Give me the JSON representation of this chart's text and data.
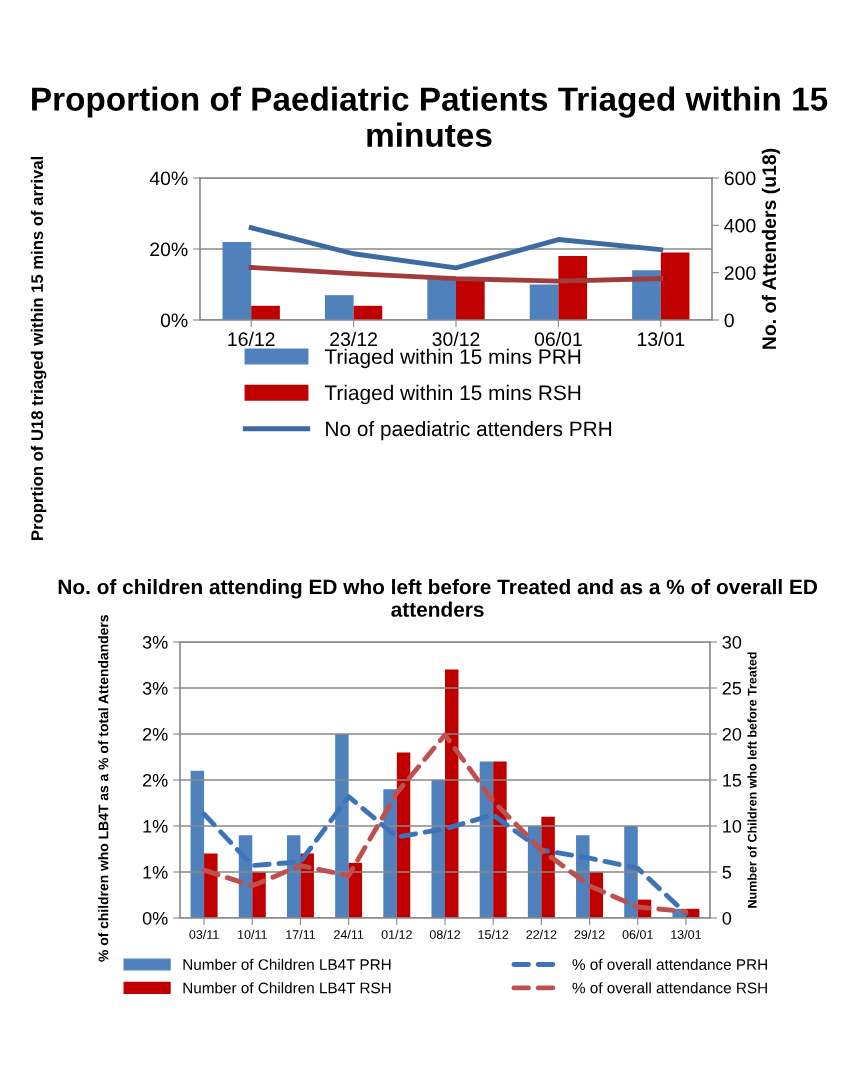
{
  "chart_data": [
    {
      "type": "bar",
      "title": "Proportion of Paediatric Patients Triaged within 15 minutes",
      "ylabel": "Proprtion of U18 triaged within 15 mins of arrival",
      "y2label": "No. of Attenders (u18)",
      "categories": [
        "16/12",
        "23/12",
        "30/12",
        "06/01",
        "13/01"
      ],
      "series": [
        {
          "name": "Triaged within 15 mins PRH",
          "axis": "y",
          "color": "#4f81bd",
          "values": [
            22,
            7,
            12,
            10,
            14
          ]
        },
        {
          "name": "Triaged within 15 mins RSH",
          "axis": "y",
          "color": "#c00000",
          "values": [
            4,
            4,
            11,
            18,
            19
          ]
        },
        {
          "name": "No of paediatric attenders PRH",
          "type": "line",
          "axis": "y2",
          "color": "#3d6aa0",
          "line_style": "solid",
          "values": [
            390,
            280,
            220,
            340,
            297
          ]
        },
        {
          "type": "line",
          "axis": "y2",
          "color": "#a03c3c",
          "line_style": "solid",
          "values": [
            222,
            196,
            175,
            164,
            175
          ]
        }
      ],
      "ylim": [
        0,
        40
      ],
      "yticks": [
        {
          "value": 0,
          "label": "0%"
        },
        {
          "value": 20,
          "label": "20%"
        },
        {
          "value": 40,
          "label": "40%"
        }
      ],
      "y2lim": [
        0,
        600
      ],
      "y2ticks": [
        0,
        200,
        400,
        600
      ],
      "grid": "y",
      "legend": "bottom",
      "marker": "none"
    },
    {
      "type": "bar",
      "title": "No. of children attending ED who left before Treated and as a % of overall ED attenders",
      "ylabel": "% of children who LB4T as a % of total Attendanders",
      "y2label": "Number of Children who left before Treated",
      "categories": [
        "03/11",
        "10/11",
        "17/11",
        "24/11",
        "01/12",
        "08/12",
        "15/12",
        "22/12",
        "29/12",
        "06/01",
        "13/01"
      ],
      "series": [
        {
          "name": "Number of Children LB4T PRH",
          "axis": "y2",
          "color": "#4f81bd",
          "values": [
            16,
            9,
            9,
            20,
            14,
            15,
            17,
            10,
            9,
            10,
            1
          ]
        },
        {
          "name": "% of overall attendance PRH",
          "type": "line",
          "axis": "y",
          "color": "#3e73b8",
          "line_style": "dashed",
          "values": [
            1.13,
            0.57,
            0.61,
            1.32,
            0.88,
            0.97,
            1.12,
            0.74,
            0.65,
            0.54,
            0.05
          ]
        },
        {
          "name": "Number of Children LB4T RSH",
          "axis": "y2",
          "color": "#c00000",
          "values": [
            7,
            5,
            7,
            6,
            18,
            27,
            17,
            11,
            5,
            2,
            1
          ]
        },
        {
          "name": "% of overall attendance RSH",
          "type": "line",
          "axis": "y",
          "color": "#c0504d",
          "line_style": "dashed",
          "values": [
            0.52,
            0.35,
            0.57,
            0.46,
            1.36,
            1.99,
            1.27,
            0.74,
            0.35,
            0.12,
            0.07
          ]
        }
      ],
      "ylim": [
        0,
        3
      ],
      "yticks": [
        {
          "value": 0,
          "label": "0%"
        },
        {
          "value": 0.5,
          "label": "1%"
        },
        {
          "value": 1,
          "label": "1%"
        },
        {
          "value": 1.5,
          "label": "2%"
        },
        {
          "value": 2,
          "label": "2%"
        },
        {
          "value": 2.5,
          "label": "3%"
        },
        {
          "value": 3,
          "label": "3%"
        }
      ],
      "y2lim": [
        0,
        30
      ],
      "y2ticks": [
        0,
        5,
        10,
        15,
        20,
        25,
        30
      ],
      "grid": "y",
      "legend": "bottom",
      "marker": "none"
    }
  ]
}
